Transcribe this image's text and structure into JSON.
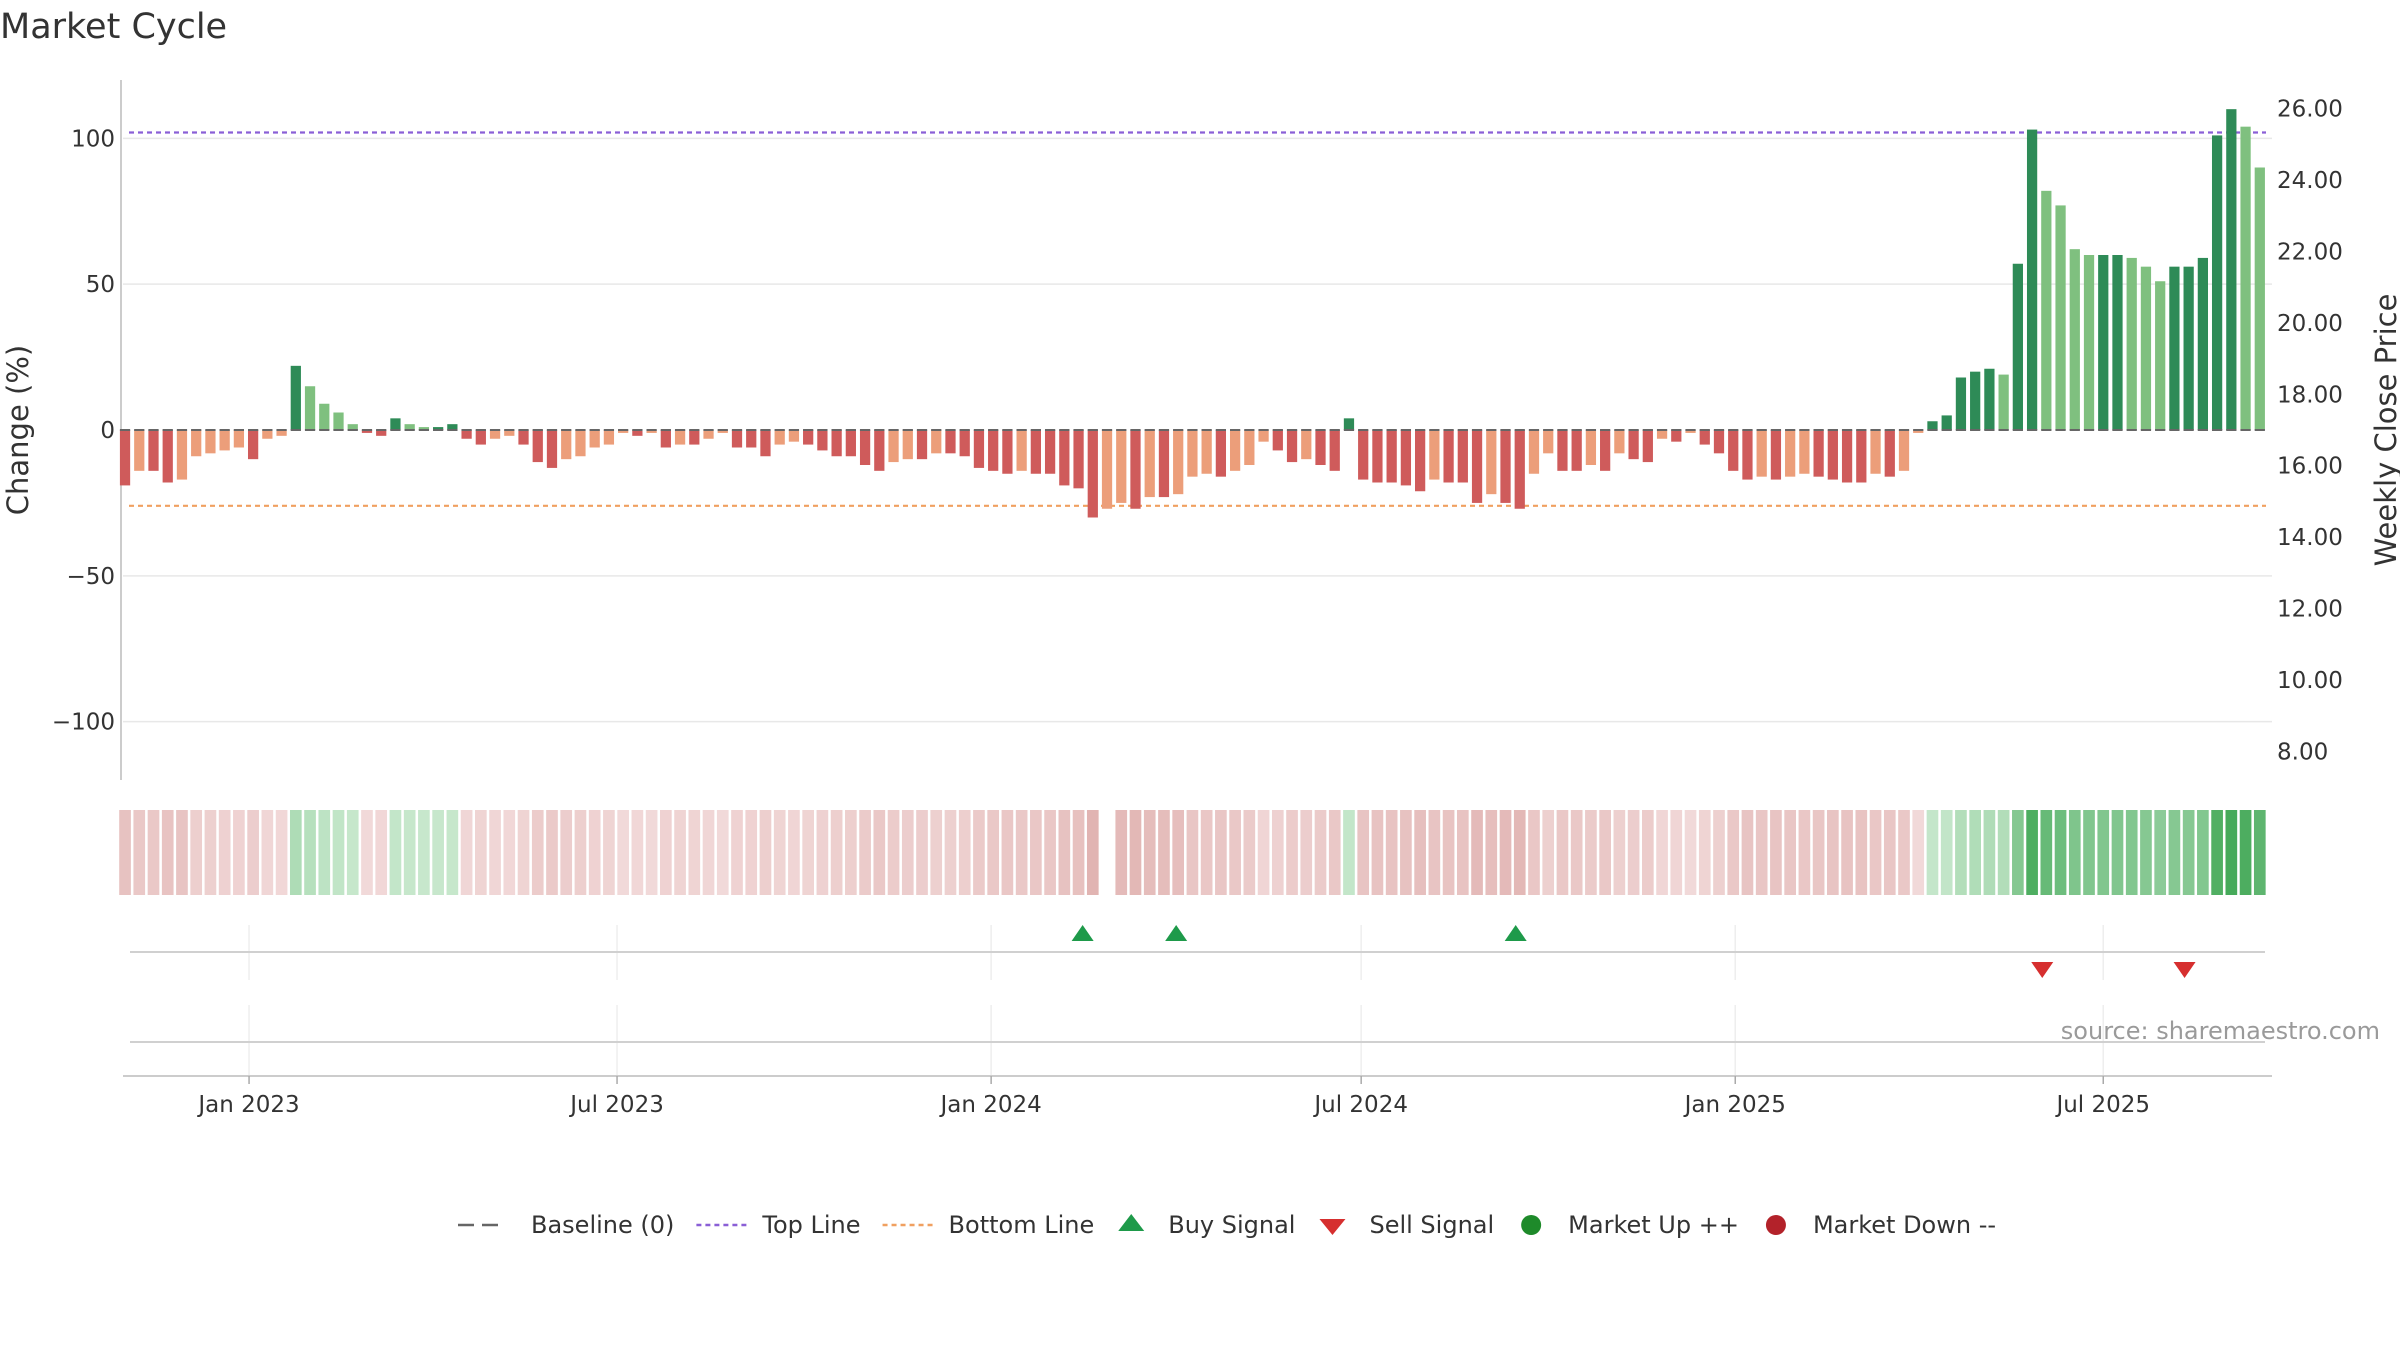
{
  "chart_data": {
    "type": "bar",
    "title": "Market Cycle",
    "y_left_label": "Change (%)",
    "y_right_label": "Weekly Close Price",
    "y_left_range": [
      -120,
      120
    ],
    "y_left_ticks": [
      100,
      50,
      0,
      -50,
      -100
    ],
    "y_left_tick_labels": [
      "100",
      "50",
      "0",
      "−50",
      "−100"
    ],
    "y_right_range": [
      7.2,
      26.8
    ],
    "y_right_ticks": [
      26,
      24,
      22,
      20,
      18,
      16,
      14,
      12,
      10,
      8
    ],
    "y_right_tick_labels": [
      "26.00",
      "24.00",
      "22.00",
      "20.00",
      "18.00",
      "16.00",
      "14.00",
      "12.00",
      "10.00",
      "8.00"
    ],
    "x_range": [
      "2022-10-31",
      "2025-09-22"
    ],
    "x_ticks": [
      "2023-01-01",
      "2023-07-01",
      "2024-01-01",
      "2024-07-01",
      "2025-01-01",
      "2025-07-01"
    ],
    "x_tick_labels": [
      "Jan 2023",
      "Jul 2023",
      "Jan 2024",
      "Jul 2024",
      "Jan 2025",
      "Jul 2025"
    ],
    "first_week": "2022-11-01",
    "top_line": 102,
    "bottom_line": -26,
    "baseline": 0,
    "grid": true,
    "legend_position": "bottom-center",
    "weekly_change": [
      -19,
      -14,
      -14,
      -18,
      -17,
      -9,
      -8,
      -7,
      -6,
      -10,
      -3,
      -2,
      22,
      15,
      9,
      6,
      2,
      -1,
      -2,
      4,
      2,
      1,
      1,
      2,
      -3,
      -5,
      -3,
      -2,
      -5,
      -11,
      -13,
      -10,
      -9,
      -6,
      -5,
      -1,
      -2,
      -1,
      -6,
      -5,
      -5,
      -3,
      -1,
      -6,
      -6,
      -9,
      -5,
      -4,
      -5,
      -7,
      -9,
      -9,
      -12,
      -14,
      -11,
      -10,
      -10,
      -8,
      -8,
      -9,
      -13,
      -14,
      -15,
      -14,
      -15,
      -15,
      -19,
      -20,
      -30,
      -27,
      -25,
      -27,
      -23,
      -23,
      -22,
      -16,
      -15,
      -16,
      -14,
      -12,
      -4,
      -7,
      -11,
      -10,
      -12,
      -14,
      4,
      -17,
      -18,
      -18,
      -19,
      -21,
      -17,
      -18,
      -18,
      -25,
      -22,
      -25,
      -27,
      -15,
      -8,
      -14,
      -14,
      -12,
      -14,
      -8,
      -10,
      -11,
      -3,
      -4,
      -1,
      -5,
      -8,
      -14,
      -17,
      -16,
      -17,
      -16,
      -15,
      -16,
      -17,
      -18,
      -18,
      -15,
      -16,
      -14,
      -1,
      3,
      5,
      18,
      20,
      21,
      19,
      57,
      103,
      82,
      77,
      62,
      60,
      60,
      60,
      59,
      56,
      51,
      56,
      56,
      59,
      101,
      110,
      104,
      90
    ],
    "weekly_close": [],
    "buy_signals": [
      "2024-02-15",
      "2024-04-01",
      "2024-09-15"
    ],
    "sell_signals": [
      "2025-06-01",
      "2025-08-10"
    ],
    "heat_strip_gaps": [
      "2024-03-01"
    ],
    "legend": [
      {
        "label": "Baseline (0)",
        "symbol": "dash-line",
        "color": "#666666"
      },
      {
        "label": "Top Line",
        "symbol": "dot-line",
        "color": "#8a5fd6"
      },
      {
        "label": "Bottom Line",
        "symbol": "dot-line",
        "color": "#f0a060"
      },
      {
        "label": "Buy Signal",
        "symbol": "triangle-up",
        "color": "#1e9a4a"
      },
      {
        "label": "Sell Signal",
        "symbol": "triangle-down",
        "color": "#d62f2f"
      },
      {
        "label": "Market Up ++",
        "symbol": "circle",
        "color": "#1e8a2a"
      },
      {
        "label": "Market Down --",
        "symbol": "circle",
        "color": "#b3222a"
      }
    ],
    "source": "source: sharemaestro.com"
  },
  "colors": {
    "up_strong": "#2e8b57",
    "up_light": "#7fc07f",
    "down_strong": "#cf5b5b",
    "down_light": "#ec9e7a",
    "top_line": "#8a5fd6",
    "bottom_line": "#f0a060",
    "buy": "#1e9a4a",
    "sell": "#d62f2f",
    "grid": "#e8e8e8",
    "axis": "#bbbbbb"
  }
}
